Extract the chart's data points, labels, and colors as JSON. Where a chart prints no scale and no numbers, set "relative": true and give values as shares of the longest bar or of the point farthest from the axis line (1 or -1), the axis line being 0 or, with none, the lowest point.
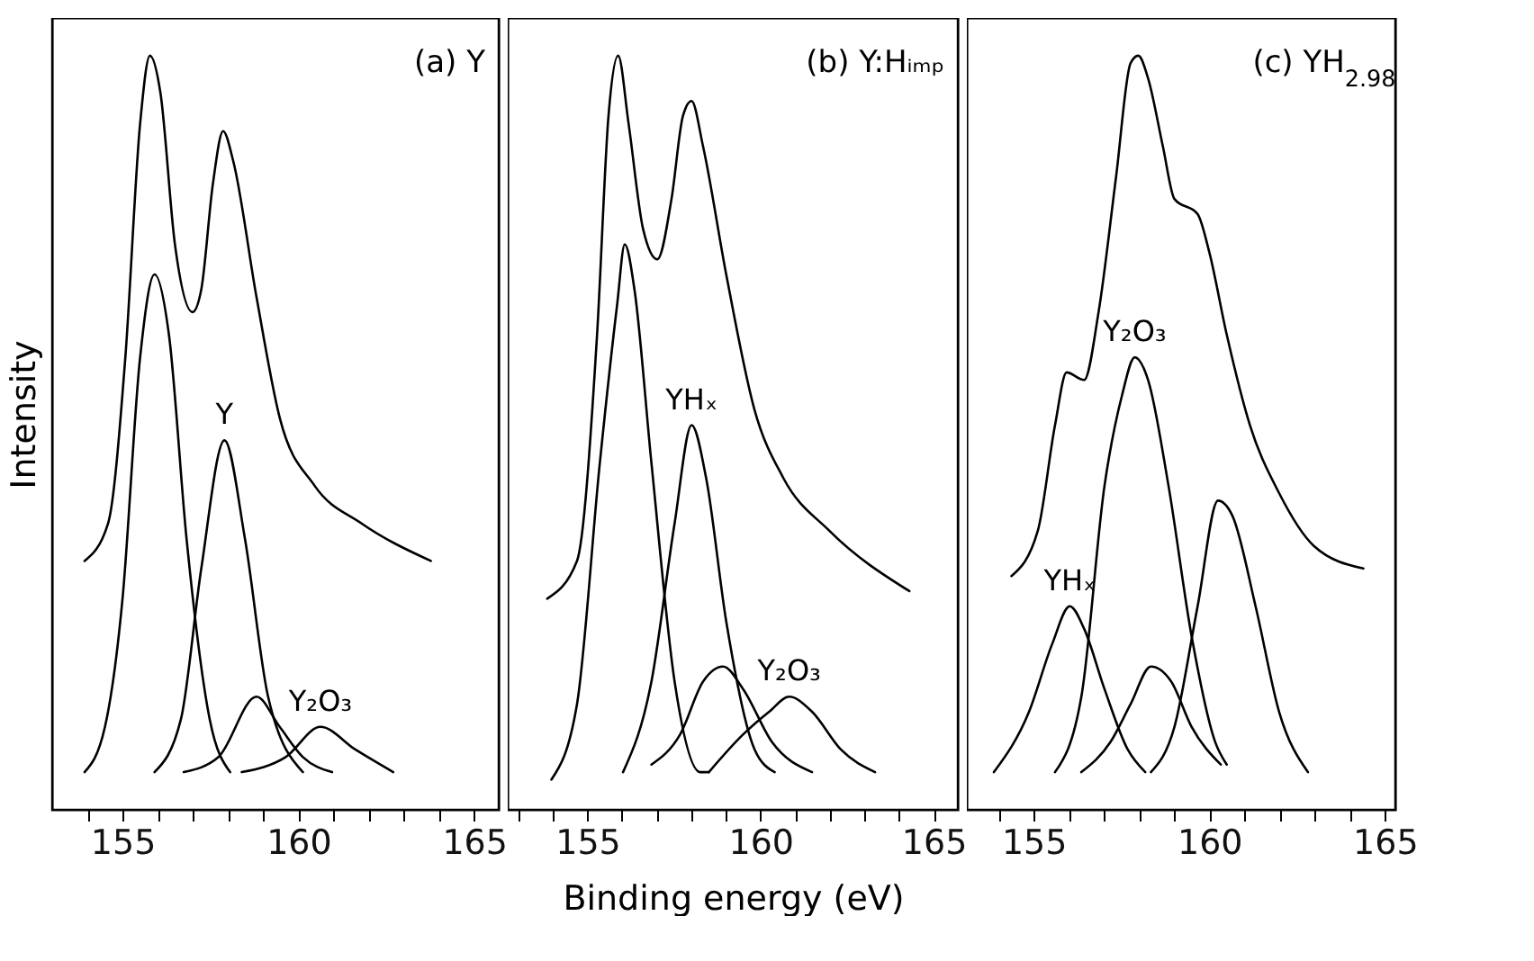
{
  "chart_data": [
    {
      "type": "line",
      "title": "(a)  Y",
      "ylabel": "Intensity",
      "relative": true,
      "xlim": [
        153,
        165.7
      ],
      "xticks": [
        {
          "value": 154,
          "label": null
        },
        155,
        {
          "value": 156,
          "label": null
        },
        {
          "value": 157,
          "label": null
        },
        {
          "value": 158,
          "label": null
        },
        {
          "value": 159,
          "label": null
        },
        160,
        {
          "value": 161,
          "label": null
        },
        {
          "value": 162,
          "label": null
        },
        {
          "value": 163,
          "label": null
        },
        {
          "value": 164,
          "label": null
        },
        165
      ],
      "series": [
        {
          "color": "#000000",
          "x": [
            153.92,
            154.59,
            155.08,
            155.5,
            155.78,
            156.08,
            156.49,
            156.99,
            157.24,
            157.57,
            157.86,
            158.15,
            158.81,
            159.47,
            160.46,
            161.79,
            163.77
          ],
          "values": [
            0.33,
            0.38,
            0.6,
            0.91,
            1,
            0.95,
            0.75,
            0.66,
            0.69,
            0.83,
            0.9,
            0.86,
            0.68,
            0.52,
            0.43,
            0.38,
            0.33
          ]
        },
        {
          "color": "#000000",
          "x": [
            153.92,
            154.5,
            155,
            155.5,
            155.91,
            156.32,
            156.82,
            157.48,
            158.06
          ],
          "values": [
            0.05,
            0.11,
            0.28,
            0.6,
            0.71,
            0.63,
            0.36,
            0.12,
            0.05
          ]
        },
        {
          "color": "#000000",
          "x": [
            155.91,
            156.66,
            157.24,
            157.9,
            158.48,
            159.14,
            160.13
          ],
          "values": [
            0.05,
            0.12,
            0.32,
            0.49,
            0.36,
            0.15,
            0.05
          ]
        },
        {
          "color": "#000000",
          "x": [
            156.74,
            157.73,
            158.81,
            159.47,
            160.13,
            160.96
          ],
          "values": [
            0.05,
            0.07,
            0.15,
            0.11,
            0.07,
            0.05
          ]
        },
        {
          "color": "#000000",
          "x": [
            158.39,
            159.64,
            160.63,
            161.62,
            162.7
          ],
          "values": [
            0.05,
            0.07,
            0.11,
            0.08,
            0.05
          ]
        }
      ],
      "annotations": [
        {
          "text": "Y",
          "x": 157.9,
          "y": 0.49
        },
        {
          "text": "Y₂O₃",
          "x": 160.63,
          "y": 0.11
        }
      ]
    },
    {
      "type": "line",
      "title": "(b)  Y:Hᵢₘₚ",
      "xlabel": "Binding    energy    (eV)",
      "relative": true,
      "xlim": [
        152.7,
        165.7
      ],
      "xticks": [
        {
          "value": 153,
          "label": null
        },
        {
          "value": 154,
          "label": null
        },
        155,
        {
          "value": 156,
          "label": null
        },
        {
          "value": 157,
          "label": null
        },
        {
          "value": 158,
          "label": null
        },
        {
          "value": 159,
          "label": null
        },
        160,
        {
          "value": 161,
          "label": null
        },
        {
          "value": 162,
          "label": null
        },
        {
          "value": 163,
          "label": null
        },
        {
          "value": 164,
          "label": null
        },
        165
      ],
      "series": [
        {
          "color": "#000000",
          "x": [
            153.84,
            154.7,
            155.28,
            155.61,
            155.89,
            156.19,
            156.61,
            157.02,
            157.43,
            157.76,
            158.01,
            158.34,
            159.01,
            159.83,
            160.66,
            161.99,
            164.3
          ],
          "values": [
            0.28,
            0.33,
            0.63,
            0.92,
            1,
            0.91,
            0.77,
            0.73,
            0.81,
            0.92,
            0.94,
            0.88,
            0.71,
            0.53,
            0.44,
            0.37,
            0.29
          ]
        },
        {
          "color": "#000000",
          "x": [
            153.96,
            154.7,
            155.36,
            155.86,
            156.08,
            156.36,
            156.85,
            157.52,
            158.26,
            158.51
          ],
          "values": [
            0.04,
            0.14,
            0.46,
            0.67,
            0.75,
            0.69,
            0.46,
            0.17,
            0.05,
            0.05
          ]
        },
        {
          "color": "#000000",
          "x": [
            156.03,
            156.85,
            157.52,
            158.01,
            158.43,
            159.01,
            159.83,
            160.41
          ],
          "values": [
            0.05,
            0.17,
            0.38,
            0.51,
            0.44,
            0.25,
            0.08,
            0.05
          ]
        },
        {
          "color": "#000000",
          "x": [
            156.85,
            157.68,
            158.34,
            158.92,
            159.5,
            160.33,
            161.49
          ],
          "values": [
            0.06,
            0.1,
            0.17,
            0.19,
            0.16,
            0.09,
            0.05
          ]
        },
        {
          "color": "#000000",
          "x": [
            158.51,
            159.5,
            160.25,
            160.83,
            161.49,
            162.32,
            163.31
          ],
          "values": [
            0.05,
            0.1,
            0.13,
            0.15,
            0.13,
            0.08,
            0.05
          ]
        }
      ],
      "annotations": [
        {
          "text": "YHₓ",
          "x": 158.01,
          "y": 0.51
        },
        {
          "text": "Y₂O₃",
          "x": 160.83,
          "y": 0.15
        }
      ]
    },
    {
      "type": "line",
      "title": "(c) YH$_{2.98}$",
      "relative": true,
      "xlim": [
        153.1,
        165.3
      ],
      "xticks": [
        {
          "value": 154,
          "label": null
        },
        155,
        {
          "value": 156,
          "label": null
        },
        {
          "value": 157,
          "label": null
        },
        {
          "value": 158,
          "label": null
        },
        {
          "value": 159,
          "label": null
        },
        160,
        {
          "value": 161,
          "label": null
        },
        {
          "value": 162,
          "label": null
        },
        {
          "value": 163,
          "label": null
        },
        {
          "value": 164,
          "label": null
        },
        165
      ],
      "series": [
        {
          "color": "#000000",
          "x": [
            154.37,
            155.12,
            155.61,
            155.94,
            156.44,
            156.85,
            157.35,
            157.76,
            157.98,
            158.26,
            158.68,
            159.01,
            159.67,
            160,
            160.5,
            161.16,
            161.99,
            162.98,
            164.39
          ],
          "values": [
            0.31,
            0.37,
            0.51,
            0.58,
            0.57,
            0.66,
            0.84,
            0.99,
            1,
            0.97,
            0.88,
            0.81,
            0.79,
            0.74,
            0.63,
            0.51,
            0.42,
            0.35,
            0.32
          ]
        },
        {
          "color": "#000000",
          "x": [
            153.87,
            154.87,
            155.53,
            156.03,
            156.44,
            157.02,
            157.68,
            158.18
          ],
          "values": [
            0.05,
            0.13,
            0.22,
            0.27,
            0.24,
            0.16,
            0.08,
            0.05
          ]
        },
        {
          "color": "#000000",
          "x": [
            155.61,
            156.36,
            157.02,
            157.52,
            157.88,
            158.26,
            158.84,
            159.5,
            160.17,
            160.5
          ],
          "values": [
            0.05,
            0.15,
            0.43,
            0.55,
            0.6,
            0.57,
            0.43,
            0.23,
            0.09,
            0.06
          ]
        },
        {
          "color": "#000000",
          "x": [
            156.36,
            157.19,
            157.76,
            158.34,
            158.92,
            159.5,
            160.33
          ],
          "values": [
            0.05,
            0.09,
            0.14,
            0.19,
            0.17,
            0.11,
            0.06
          ]
        },
        {
          "color": "#000000",
          "x": [
            158.34,
            159.01,
            159.67,
            160.25,
            160.66,
            161.32,
            161.99,
            162.81
          ],
          "values": [
            0.05,
            0.11,
            0.27,
            0.41,
            0.39,
            0.27,
            0.13,
            0.05
          ]
        }
      ],
      "annotations": [
        {
          "text": "Y₂O₃",
          "x": 157.88,
          "y": 0.6
        },
        {
          "text": "YHₓ",
          "x": 156.03,
          "y": 0.27
        }
      ]
    }
  ]
}
